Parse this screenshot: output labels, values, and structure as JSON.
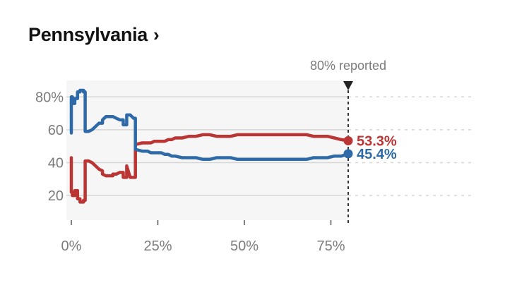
{
  "header": {
    "title": "Pennsylvania",
    "chevron": "›"
  },
  "chart_data": {
    "type": "line",
    "title": "Pennsylvania",
    "xlabel": "",
    "ylabel": "",
    "xlim": [
      0,
      100
    ],
    "ylim": [
      5,
      90
    ],
    "x_ticks": [
      {
        "value": 0,
        "label": "0%"
      },
      {
        "value": 25,
        "label": "25%"
      },
      {
        "value": 50,
        "label": "50%"
      },
      {
        "value": 75,
        "label": "75%"
      }
    ],
    "y_ticks": [
      {
        "value": 80,
        "label": "80%"
      },
      {
        "value": 60,
        "label": "60"
      },
      {
        "value": 40,
        "label": "40"
      },
      {
        "value": 20,
        "label": "20"
      }
    ],
    "grid": true,
    "reported": {
      "value": 80,
      "label": "80% reported"
    },
    "series": [
      {
        "color": "#bb3535",
        "end_label": "53.3%",
        "x": [
          0,
          0,
          0.3,
          0.3,
          1,
          1,
          1.8,
          1.8,
          2.5,
          2.5,
          3.5,
          3.5,
          4,
          4,
          5,
          6,
          7,
          8,
          9,
          9,
          10,
          11,
          12,
          12,
          13,
          14,
          15,
          15,
          16,
          16,
          17,
          18,
          18.5,
          18.5,
          20.5,
          21,
          22,
          23,
          24,
          25,
          26,
          27,
          28,
          29,
          30,
          32,
          34,
          36,
          38,
          40,
          42,
          44,
          46,
          48,
          50,
          52,
          54,
          56,
          58,
          60,
          62,
          64,
          66,
          68,
          70,
          72,
          74,
          76,
          78,
          80
        ],
        "values": [
          43,
          22,
          22,
          20,
          20,
          23,
          23,
          18,
          18,
          16,
          16,
          17,
          17,
          41,
          41,
          40,
          38,
          36,
          35,
          33,
          32,
          32,
          32,
          33,
          33,
          34,
          34,
          31,
          31,
          38,
          31,
          31,
          31,
          51,
          52,
          52,
          52,
          52,
          53,
          53,
          53,
          53,
          54,
          54,
          55,
          55,
          56,
          56,
          57,
          57,
          56,
          56,
          56,
          57,
          57,
          57,
          57,
          57,
          57,
          57,
          57,
          57,
          57,
          57,
          56,
          56,
          56,
          55,
          54,
          53.3
        ]
      },
      {
        "color": "#2e6aa8",
        "end_label": "45.4%",
        "x": [
          0,
          0,
          0.3,
          0.3,
          1,
          1,
          1.8,
          1.8,
          2.5,
          2.5,
          3.5,
          3.5,
          4,
          4,
          5,
          6,
          7,
          8,
          9,
          9,
          10,
          11,
          12,
          12,
          13,
          14,
          15,
          15,
          16,
          16,
          17,
          18,
          18.5,
          18.5,
          20.5,
          21,
          22,
          23,
          24,
          25,
          26,
          27,
          28,
          29,
          30,
          32,
          34,
          36,
          38,
          40,
          42,
          44,
          46,
          48,
          50,
          52,
          54,
          56,
          58,
          60,
          62,
          64,
          66,
          68,
          70,
          72,
          74,
          76,
          78,
          80
        ],
        "values": [
          58,
          80,
          80,
          76,
          76,
          79,
          79,
          83,
          83,
          84,
          84,
          83,
          83,
          59,
          59,
          60,
          62,
          64,
          64,
          66,
          68,
          68,
          68,
          68,
          67,
          66,
          66,
          63,
          63,
          69,
          69,
          67,
          67,
          48,
          47,
          47,
          47,
          46,
          46,
          46,
          46,
          45,
          45,
          44,
          44,
          43,
          43,
          43,
          42,
          42,
          43,
          43,
          43,
          42,
          42,
          42,
          42,
          42,
          42,
          42,
          42,
          42,
          42,
          42,
          43,
          43,
          43,
          44,
          44,
          45.4
        ]
      }
    ]
  }
}
